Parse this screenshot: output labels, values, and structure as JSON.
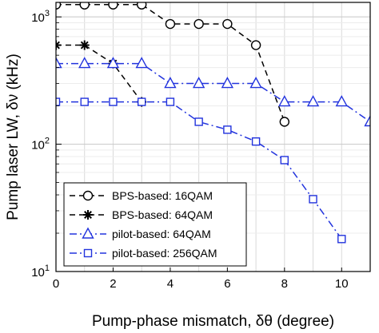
{
  "chart_data": {
    "type": "line",
    "xlabel": "Pump-phase mismatch, δθ (degree)",
    "ylabel": "Pump laser LW, δν (kHz)",
    "xlim": [
      0,
      11
    ],
    "ylim": [
      10,
      1300
    ],
    "yscale": "log",
    "grid": true,
    "legend_position": "bottom-left",
    "x_ticks": [
      0,
      2,
      4,
      6,
      8,
      10
    ],
    "y_ticks": [
      {
        "value": 1000,
        "base": "10",
        "exp": "3"
      },
      {
        "value": 100,
        "base": "10",
        "exp": "2"
      },
      {
        "value": 10,
        "base": "10",
        "exp": "1"
      }
    ],
    "series": [
      {
        "name": "BPS-based: 16QAM",
        "color": "#000000",
        "marker": "circle",
        "dash": "7,5",
        "x": [
          0,
          1,
          2,
          3,
          4,
          5,
          6,
          7,
          8
        ],
        "y": [
          1250,
          1250,
          1250,
          1250,
          880,
          880,
          880,
          600,
          150
        ]
      },
      {
        "name": "BPS-based: 64QAM",
        "color": "#000000",
        "marker": "star",
        "dash": "7,5",
        "x": [
          0,
          1,
          2,
          3
        ],
        "y": [
          600,
          600,
          430,
          215
        ]
      },
      {
        "name": "pilot-based: 64QAM",
        "color": "#2233dd",
        "marker": "triangle",
        "dash": "9,4,2,4",
        "x": [
          0,
          1,
          2,
          3,
          4,
          5,
          6,
          7,
          8,
          9,
          10,
          11
        ],
        "y": [
          430,
          430,
          430,
          430,
          300,
          300,
          300,
          300,
          215,
          215,
          215,
          150
        ]
      },
      {
        "name": "pilot-based: 256QAM",
        "color": "#2233dd",
        "marker": "square",
        "dash": "9,4,2,4",
        "x": [
          0,
          1,
          2,
          3,
          4,
          5,
          6,
          7,
          8,
          9,
          10
        ],
        "y": [
          215,
          215,
          215,
          215,
          215,
          150,
          130,
          105,
          75,
          37,
          18
        ]
      }
    ]
  }
}
